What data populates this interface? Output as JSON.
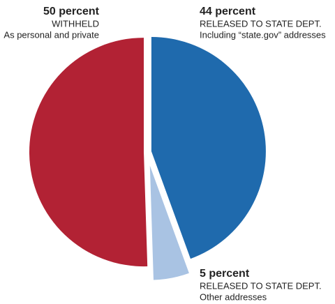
{
  "chart_data": {
    "type": "pie",
    "categories": [
      "RELEASED TO STATE DEPT.",
      "RELEASED TO STATE DEPT.",
      "WITHHELD"
    ],
    "descriptions": [
      "Including “state.gov” addresses",
      "Other addresses",
      "As personal and private"
    ],
    "values": [
      44,
      5,
      50
    ],
    "value_labels": [
      "44 percent",
      "5 percent",
      "50 percent"
    ],
    "colors": [
      "#1f6aad",
      "#a9c3e3",
      "#b22234"
    ]
  }
}
